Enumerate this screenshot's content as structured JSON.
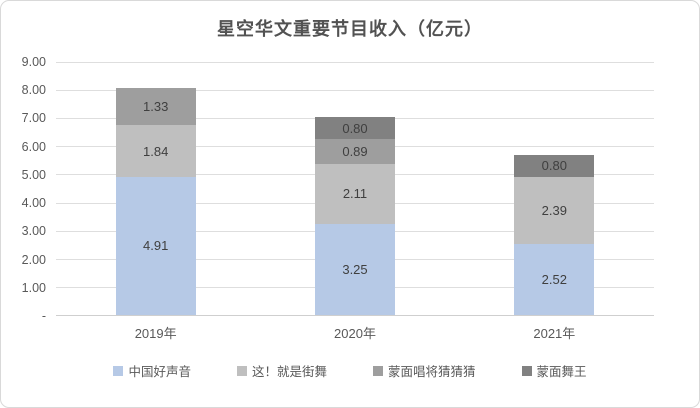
{
  "chart_data": {
    "type": "bar",
    "stacked": true,
    "title": "星空华文重要节目收入（亿元）",
    "categories": [
      "2019年",
      "2020年",
      "2021年"
    ],
    "series": [
      {
        "name": "中国好声音",
        "color": "#b6c9e6",
        "values": [
          4.91,
          3.25,
          2.52
        ]
      },
      {
        "name": "这！就是街舞",
        "color": "#bfbfbf",
        "values": [
          1.84,
          2.11,
          2.39
        ]
      },
      {
        "name": "蒙面唱将猜猜猜",
        "color": "#9e9e9e",
        "values": [
          1.33,
          0.89,
          0
        ]
      },
      {
        "name": "蒙面舞王",
        "color": "#818181",
        "values": [
          0,
          0.8,
          0.8
        ]
      }
    ],
    "ylim": [
      0,
      9
    ],
    "y_ticks": [
      "9.00",
      "8.00",
      "7.00",
      "6.00",
      "5.00",
      "4.00",
      "3.00",
      "2.00",
      "1.00",
      "-"
    ],
    "grid": true,
    "legend_position": "bottom",
    "value_labels": "inside, 2 decimals",
    "totals": [
      8.08,
      7.05,
      5.71
    ]
  },
  "colors": {
    "card_background": "#ffffff",
    "card_border": "#d9d9d9",
    "gridline": "#dedede",
    "title_text": "#525252",
    "axis_text": "#595959",
    "value_label_text": "#3f3f3f"
  }
}
